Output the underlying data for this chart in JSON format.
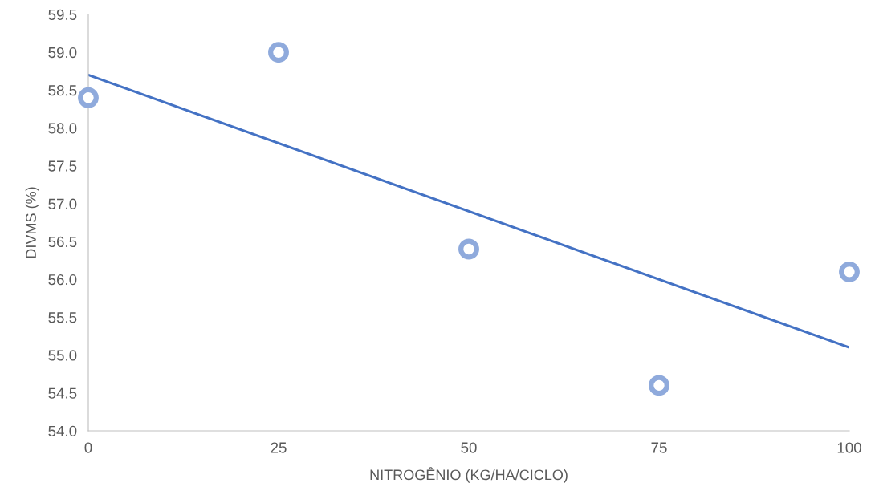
{
  "chart_data": {
    "type": "scatter",
    "xlabel": "NITROGÊNIO (KG/HA/CICLO)",
    "ylabel": "DIVMS (%)",
    "series": [
      {
        "color": "#8faadc",
        "marker": "circle",
        "x": [
          0,
          25,
          50,
          75,
          100
        ],
        "values": [
          58.4,
          59.0,
          56.4,
          54.6,
          56.1
        ]
      },
      {
        "type": "line",
        "color": "#4472c4",
        "marker": "none",
        "line_style": "solid",
        "x": [
          0,
          100
        ],
        "values": [
          58.7,
          55.1
        ]
      }
    ],
    "xlim": [
      0,
      100
    ],
    "xticks": [
      0,
      25,
      50,
      75,
      100
    ],
    "ylim": [
      54.0,
      59.5
    ],
    "yticks": [
      {
        "value": 54.0,
        "label": "54.0"
      },
      {
        "value": 54.5,
        "label": "54.5"
      },
      {
        "value": 55.0,
        "label": "55.0"
      },
      {
        "value": 55.5,
        "label": "55.5"
      },
      {
        "value": 56.0,
        "label": "56.0"
      },
      {
        "value": 56.5,
        "label": "56.5"
      },
      {
        "value": 57.0,
        "label": "57.0"
      },
      {
        "value": 57.5,
        "label": "57.5"
      },
      {
        "value": 58.0,
        "label": "58.0"
      },
      {
        "value": 58.5,
        "label": "58.5"
      },
      {
        "value": 59.0,
        "label": "59.0"
      },
      {
        "value": 59.5,
        "label": "59.5"
      }
    ],
    "grid": false
  }
}
